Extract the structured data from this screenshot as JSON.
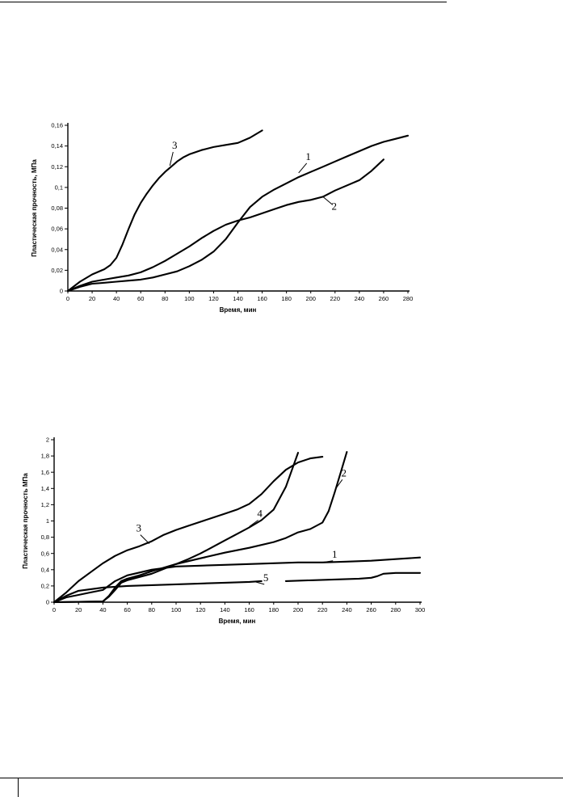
{
  "chart_data": [
    {
      "type": "line",
      "title": "",
      "xlabel": "Время, мин",
      "ylabel": "Пластическая прочность, МПа",
      "xlim": [
        0,
        280
      ],
      "ylim": [
        0,
        0.16
      ],
      "x_ticks": [
        0,
        20,
        40,
        60,
        80,
        100,
        120,
        140,
        160,
        180,
        200,
        220,
        240,
        260,
        280
      ],
      "x_tick_labels": [
        "0",
        "20",
        "40",
        "60",
        "80",
        "100",
        "120",
        "140",
        "160",
        "180",
        "200",
        "220",
        "240",
        "260",
        "280"
      ],
      "y_ticks": [
        0,
        0.02,
        0.04,
        0.06,
        0.08,
        0.1,
        0.12,
        0.14,
        0.16
      ],
      "y_tick_labels": [
        "0",
        "0,02",
        "0,04",
        "0,06",
        "0,08",
        "0,1",
        "0,12",
        "0,14",
        "0,16"
      ],
      "series": [
        {
          "label": "1",
          "x": [
            0,
            10,
            20,
            30,
            40,
            50,
            60,
            70,
            80,
            90,
            100,
            110,
            120,
            130,
            140,
            150,
            160,
            170,
            180,
            190,
            200,
            210,
            220,
            230,
            240,
            250,
            260,
            270,
            280
          ],
          "y": [
            0,
            0.004,
            0.007,
            0.008,
            0.009,
            0.01,
            0.011,
            0.013,
            0.016,
            0.019,
            0.024,
            0.03,
            0.038,
            0.05,
            0.066,
            0.081,
            0.091,
            0.098,
            0.104,
            0.11,
            0.115,
            0.12,
            0.125,
            0.13,
            0.135,
            0.14,
            0.144,
            0.147,
            0.15
          ],
          "label_at": [
            190,
            0.114
          ]
        },
        {
          "label": "2",
          "x": [
            0,
            10,
            20,
            30,
            40,
            50,
            60,
            70,
            80,
            90,
            100,
            110,
            120,
            130,
            140,
            150,
            160,
            170,
            180,
            190,
            200,
            210,
            220,
            230,
            240,
            250,
            260
          ],
          "y": [
            0,
            0.005,
            0.009,
            0.011,
            0.013,
            0.015,
            0.018,
            0.023,
            0.029,
            0.036,
            0.043,
            0.051,
            0.058,
            0.064,
            0.068,
            0.071,
            0.075,
            0.079,
            0.083,
            0.086,
            0.088,
            0.091,
            0.097,
            0.102,
            0.107,
            0.116,
            0.127
          ],
          "label_at": [
            210,
            0.091
          ]
        },
        {
          "label": "3",
          "x": [
            0,
            10,
            20,
            30,
            35,
            40,
            45,
            50,
            55,
            60,
            65,
            70,
            75,
            80,
            85,
            90,
            95,
            100,
            110,
            120,
            130,
            140,
            150,
            160
          ],
          "y": [
            0,
            0.009,
            0.016,
            0.021,
            0.025,
            0.032,
            0.045,
            0.06,
            0.074,
            0.085,
            0.094,
            0.102,
            0.109,
            0.115,
            0.12,
            0.125,
            0.129,
            0.132,
            0.136,
            0.139,
            0.141,
            0.143,
            0.148,
            0.155
          ],
          "label_at": [
            84,
            0.121
          ]
        }
      ]
    },
    {
      "type": "line",
      "title": "",
      "xlabel": "Время, мин",
      "ylabel": "Пластическая прочность МПа",
      "xlim": [
        0,
        300
      ],
      "ylim": [
        0,
        2
      ],
      "x_ticks": [
        0,
        20,
        40,
        60,
        80,
        100,
        120,
        140,
        160,
        180,
        200,
        220,
        240,
        260,
        280,
        300
      ],
      "x_tick_labels": [
        "0",
        "20",
        "40",
        "60",
        "80",
        "100",
        "120",
        "140",
        "160",
        "180",
        "200",
        "220",
        "240",
        "260",
        "280",
        "300"
      ],
      "y_ticks": [
        0,
        0.2,
        0.4,
        0.6,
        0.8,
        1,
        1.2,
        1.4,
        1.6,
        1.8,
        2
      ],
      "y_tick_labels": [
        "0",
        "0,2",
        "0,4",
        "0,6",
        "0,8",
        "1",
        "1,2",
        "1,4",
        "1,6",
        "1,8",
        "2"
      ],
      "series": [
        {
          "label": "1",
          "x": [
            0,
            10,
            20,
            30,
            40,
            50,
            60,
            80,
            100,
            120,
            140,
            160,
            180,
            200,
            220,
            240,
            260,
            280,
            300
          ],
          "y": [
            0,
            0.06,
            0.09,
            0.12,
            0.15,
            0.26,
            0.33,
            0.4,
            0.44,
            0.45,
            0.46,
            0.47,
            0.48,
            0.49,
            0.49,
            0.5,
            0.51,
            0.53,
            0.55
          ],
          "label_at": [
            220,
            0.49
          ]
        },
        {
          "label": "2",
          "x": [
            0,
            40,
            45,
            50,
            55,
            60,
            70,
            80,
            100,
            120,
            140,
            160,
            180,
            190,
            200,
            210,
            220,
            225,
            230,
            235,
            240
          ],
          "y": [
            0,
            0.01,
            0.08,
            0.18,
            0.26,
            0.29,
            0.33,
            0.38,
            0.47,
            0.54,
            0.61,
            0.67,
            0.74,
            0.79,
            0.86,
            0.9,
            0.98,
            1.12,
            1.35,
            1.6,
            1.85
          ],
          "label_at": [
            231,
            1.4
          ]
        },
        {
          "label": "3",
          "x": [
            0,
            10,
            20,
            30,
            40,
            50,
            60,
            70,
            80,
            90,
            100,
            110,
            120,
            130,
            140,
            150,
            160,
            170,
            180,
            190,
            200,
            210,
            220
          ],
          "y": [
            0,
            0.12,
            0.26,
            0.37,
            0.48,
            0.57,
            0.64,
            0.69,
            0.75,
            0.83,
            0.89,
            0.94,
            0.99,
            1.04,
            1.09,
            1.14,
            1.21,
            1.33,
            1.49,
            1.63,
            1.72,
            1.77,
            1.79
          ],
          "label_at": [
            78,
            0.72
          ]
        },
        {
          "label": "4",
          "x": [
            0,
            40,
            45,
            50,
            55,
            60,
            70,
            80,
            90,
            100,
            110,
            120,
            130,
            140,
            150,
            160,
            170,
            180,
            190,
            200
          ],
          "y": [
            0,
            0.01,
            0.07,
            0.15,
            0.24,
            0.27,
            0.31,
            0.35,
            0.41,
            0.47,
            0.53,
            0.6,
            0.68,
            0.76,
            0.84,
            0.92,
            1.01,
            1.14,
            1.42,
            1.84
          ],
          "label_at": [
            160,
            0.93
          ]
        },
        {
          "label": "5",
          "x": [
            0,
            10,
            20,
            40,
            60,
            80,
            100,
            120,
            140,
            160,
            170
          ],
          "y": [
            0,
            0.08,
            0.14,
            0.18,
            0.2,
            0.21,
            0.22,
            0.23,
            0.24,
            0.25,
            0.26
          ],
          "label_at": [
            165,
            0.25
          ]
        },
        {
          "label": "",
          "x": [
            190,
            210,
            230,
            250,
            260,
            265,
            270,
            280,
            300
          ],
          "y": [
            0.26,
            0.27,
            0.28,
            0.29,
            0.3,
            0.32,
            0.35,
            0.36,
            0.36
          ],
          "label_at": null
        }
      ]
    }
  ]
}
